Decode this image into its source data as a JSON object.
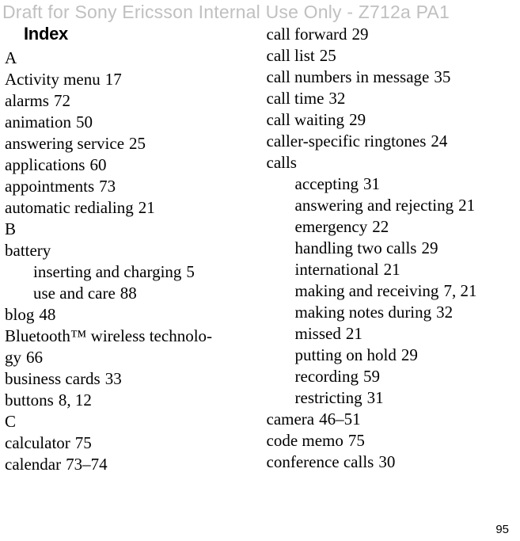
{
  "watermark": "Draft for Sony Ericsson Internal Use Only - Z712a PA1",
  "index_title": "Index",
  "page_number": "95",
  "left": {
    "A": {
      "letter": "A",
      "items": [
        {
          "label": "Activity menu",
          "page": "17"
        },
        {
          "label": "alarms",
          "page": "72"
        },
        {
          "label": "animation",
          "page": "50"
        },
        {
          "label": "answering service",
          "page": "25"
        },
        {
          "label": "applications",
          "page": "60"
        },
        {
          "label": "appointments",
          "page": "73"
        },
        {
          "label": "automatic redialing",
          "page": "21"
        }
      ]
    },
    "B": {
      "letter": "B",
      "battery_label": "battery",
      "battery_sub": [
        {
          "label": "inserting and charging",
          "page": "5"
        },
        {
          "label": "use and care",
          "page": "88"
        }
      ],
      "blog": {
        "label": "blog",
        "page": "48"
      },
      "bluetooth_l1": "Bluetooth™ wireless technolo-",
      "bluetooth_l2": "gy",
      "bluetooth_page": "66",
      "business_cards": {
        "label": "business cards",
        "page": "33"
      },
      "buttons": {
        "label": "buttons",
        "pages": "8, 12"
      }
    },
    "C": {
      "letter": "C",
      "calculator": {
        "label": "calculator",
        "page": "75"
      },
      "calendar": {
        "label": "calendar",
        "range": "73–74"
      }
    }
  },
  "right": {
    "pre_calls": [
      {
        "label": "call forward",
        "page": "29"
      },
      {
        "label": "call list",
        "page": "25"
      },
      {
        "label": "call numbers in message",
        "page": "35"
      },
      {
        "label": "call time",
        "page": "32"
      },
      {
        "label": "call waiting",
        "page": "29"
      },
      {
        "label": "caller-specific ringtones",
        "page": "24"
      }
    ],
    "calls_label": "calls",
    "calls_sub": [
      {
        "label": "accepting",
        "page": "31"
      },
      {
        "label": "answering and rejecting",
        "page": "21"
      },
      {
        "label": "emergency",
        "page": "22"
      },
      {
        "label": "handling two calls",
        "page": "29"
      },
      {
        "label": "international",
        "page": "21"
      },
      {
        "label": "making and receiving",
        "pages": "7, 21"
      },
      {
        "label": "making notes during",
        "page": "32"
      },
      {
        "label": "missed",
        "page": "21"
      },
      {
        "label": "putting on hold",
        "page": "29"
      },
      {
        "label": "recording",
        "page": "59"
      },
      {
        "label": "restricting",
        "page": "31"
      }
    ],
    "post_calls": [
      {
        "label": "camera",
        "range": "46–51"
      },
      {
        "label": "code memo",
        "page": "75"
      },
      {
        "label": "conference calls",
        "page": "30"
      }
    ]
  }
}
